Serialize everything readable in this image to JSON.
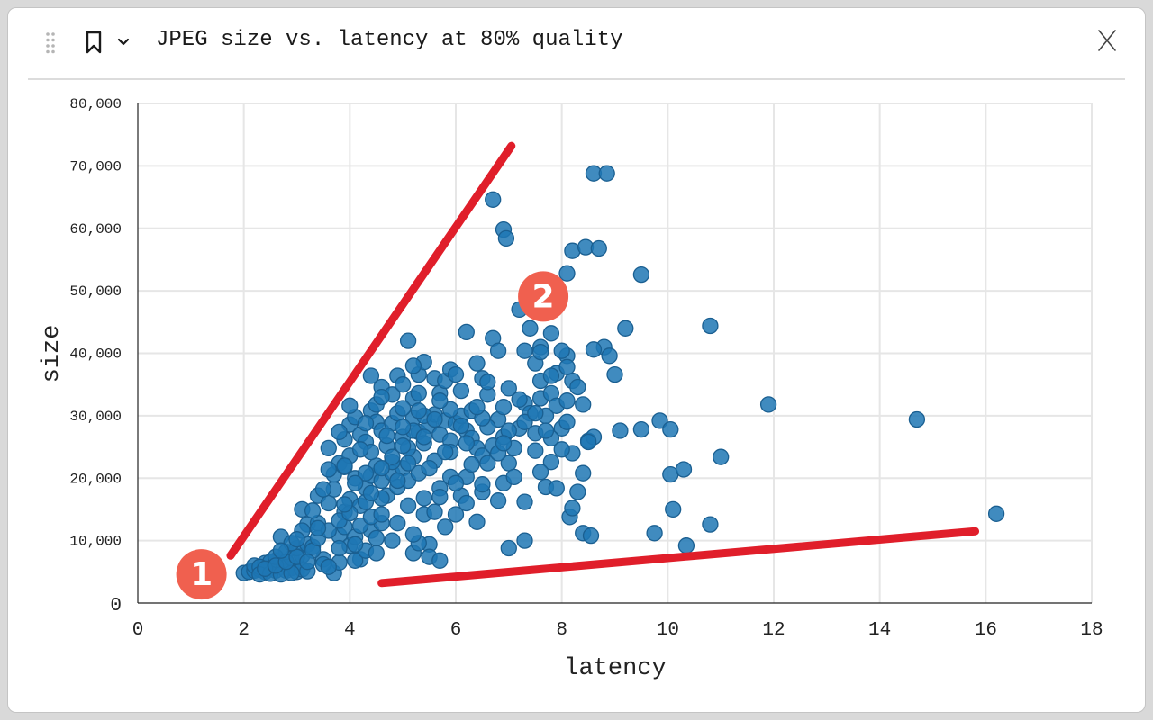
{
  "window": {
    "title": "JPEG size vs. latency at 80% quality",
    "icons": {
      "drag": "drag-handle-icon",
      "bookmark": "bookmark-icon",
      "menu": "chevron-down-icon",
      "close": "close-icon"
    }
  },
  "annotations": [
    {
      "label": "1",
      "color": "#f0604f"
    },
    {
      "label": "2",
      "color": "#f0604f"
    }
  ],
  "colors": {
    "points": "#1f77b4",
    "annotation_lines": "#e01e2a",
    "grid": "#e6e6e6"
  },
  "chart_data": {
    "type": "scatter",
    "title": "JPEG size vs. latency at 80% quality",
    "xlabel": "latency",
    "ylabel": "size",
    "xlim": [
      0,
      18
    ],
    "ylim": [
      0,
      80000
    ],
    "xticks": [
      "0",
      "2",
      "4",
      "6",
      "8",
      "10",
      "12",
      "14",
      "16",
      "18"
    ],
    "yticks": [
      "0",
      "10,000",
      "20,000",
      "30,000",
      "40,000",
      "50,000",
      "60,000",
      "70,000",
      "80,000"
    ],
    "grid": true,
    "trend_lines": [
      {
        "from": [
          1.75,
          7600
        ],
        "to": [
          7.05,
          73200
        ]
      },
      {
        "from": [
          4.6,
          3200
        ],
        "to": [
          15.8,
          11500
        ]
      }
    ],
    "annotation_positions": [
      [
        1.2,
        4600
      ],
      [
        7.65,
        49100
      ]
    ],
    "series": [
      {
        "points": [
          [
            2.0,
            4800
          ],
          [
            2.1,
            5000
          ],
          [
            2.2,
            5200
          ],
          [
            2.3,
            5400
          ],
          [
            2.4,
            5000
          ],
          [
            2.5,
            5600
          ],
          [
            2.6,
            5200
          ],
          [
            2.2,
            6000
          ],
          [
            2.4,
            6400
          ],
          [
            2.6,
            6800
          ],
          [
            2.8,
            5200
          ],
          [
            2.9,
            5600
          ],
          [
            3.0,
            5000
          ],
          [
            3.1,
            5400
          ],
          [
            2.7,
            6200
          ],
          [
            2.9,
            7200
          ],
          [
            3.1,
            7600
          ],
          [
            2.5,
            6600
          ],
          [
            2.3,
            5800
          ],
          [
            2.8,
            8200
          ],
          [
            3.0,
            8800
          ],
          [
            3.2,
            9400
          ],
          [
            2.6,
            7400
          ],
          [
            2.7,
            10600
          ],
          [
            3.3,
            9000
          ],
          [
            3.5,
            7000
          ],
          [
            3.7,
            4800
          ],
          [
            3.8,
            6500
          ],
          [
            3.2,
            12600
          ],
          [
            3.4,
            12800
          ],
          [
            3.1,
            15000
          ],
          [
            3.4,
            17200
          ],
          [
            3.6,
            16000
          ],
          [
            3.7,
            18200
          ],
          [
            3.5,
            6200
          ],
          [
            3.6,
            5800
          ],
          [
            3.8,
            10800
          ],
          [
            3.9,
            12200
          ],
          [
            4.0,
            9200
          ],
          [
            4.1,
            10600
          ],
          [
            4.2,
            7000
          ],
          [
            4.1,
            6800
          ],
          [
            4.3,
            8400
          ],
          [
            4.5,
            8000
          ],
          [
            4.4,
            11600
          ],
          [
            4.6,
            12800
          ],
          [
            3.9,
            14600
          ],
          [
            4.0,
            16600
          ],
          [
            4.2,
            15600
          ],
          [
            4.3,
            18400
          ],
          [
            4.4,
            20400
          ],
          [
            4.5,
            22000
          ],
          [
            4.6,
            19600
          ],
          [
            4.7,
            17200
          ],
          [
            4.8,
            20800
          ],
          [
            4.9,
            18600
          ],
          [
            5.0,
            21600
          ],
          [
            5.1,
            19600
          ],
          [
            5.2,
            23400
          ],
          [
            5.3,
            20800
          ],
          [
            3.7,
            20600
          ],
          [
            3.8,
            22400
          ],
          [
            3.9,
            21800
          ],
          [
            4.0,
            23600
          ],
          [
            4.1,
            20000
          ],
          [
            3.9,
            26200
          ],
          [
            4.0,
            28600
          ],
          [
            4.2,
            27000
          ],
          [
            4.3,
            25800
          ],
          [
            4.1,
            29800
          ],
          [
            4.4,
            30800
          ],
          [
            4.5,
            29000
          ],
          [
            4.6,
            27600
          ],
          [
            4.7,
            25200
          ],
          [
            4.8,
            28800
          ],
          [
            4.9,
            30400
          ],
          [
            5.0,
            26600
          ],
          [
            5.1,
            24800
          ],
          [
            5.2,
            29600
          ],
          [
            5.3,
            27400
          ],
          [
            5.4,
            25600
          ],
          [
            5.5,
            28400
          ],
          [
            5.6,
            30200
          ],
          [
            5.7,
            27000
          ],
          [
            5.8,
            29200
          ],
          [
            5.9,
            26000
          ],
          [
            6.0,
            28800
          ],
          [
            6.1,
            30000
          ],
          [
            6.2,
            27600
          ],
          [
            6.3,
            26400
          ],
          [
            6.4,
            24800
          ],
          [
            6.5,
            23600
          ],
          [
            4.5,
            31800
          ],
          [
            4.6,
            34600
          ],
          [
            4.8,
            33400
          ],
          [
            4.9,
            36400
          ],
          [
            5.0,
            35000
          ],
          [
            5.2,
            32800
          ],
          [
            5.3,
            36600
          ],
          [
            5.4,
            38600
          ],
          [
            5.6,
            36000
          ],
          [
            5.7,
            33600
          ],
          [
            5.8,
            35600
          ],
          [
            5.9,
            37400
          ],
          [
            6.0,
            36600
          ],
          [
            6.1,
            34000
          ],
          [
            6.2,
            43400
          ],
          [
            6.4,
            38400
          ],
          [
            6.5,
            36000
          ],
          [
            6.6,
            33400
          ],
          [
            6.7,
            42400
          ],
          [
            6.8,
            40400
          ],
          [
            5.1,
            42000
          ],
          [
            4.4,
            36400
          ],
          [
            5.4,
            14200
          ],
          [
            5.5,
            9400
          ],
          [
            5.6,
            14600
          ],
          [
            5.7,
            18400
          ],
          [
            5.8,
            12200
          ],
          [
            5.9,
            20200
          ],
          [
            6.0,
            14200
          ],
          [
            6.1,
            17200
          ],
          [
            6.2,
            20200
          ],
          [
            6.3,
            22200
          ],
          [
            6.4,
            13000
          ],
          [
            6.5,
            17800
          ],
          [
            6.6,
            22400
          ],
          [
            6.7,
            25200
          ],
          [
            5.5,
            7400
          ],
          [
            5.7,
            6800
          ],
          [
            5.2,
            8000
          ],
          [
            4.8,
            10000
          ],
          [
            4.5,
            10400
          ],
          [
            5.3,
            9600
          ],
          [
            6.8,
            29400
          ],
          [
            6.9,
            26600
          ],
          [
            7.0,
            22400
          ],
          [
            7.1,
            24800
          ],
          [
            7.2,
            28000
          ],
          [
            7.3,
            32000
          ],
          [
            7.4,
            30400
          ],
          [
            7.5,
            27200
          ],
          [
            7.6,
            32800
          ],
          [
            7.7,
            30000
          ],
          [
            7.8,
            33600
          ],
          [
            7.9,
            31600
          ],
          [
            8.0,
            28000
          ],
          [
            7.0,
            8800
          ],
          [
            7.3,
            10000
          ],
          [
            7.3,
            16200
          ],
          [
            7.7,
            18600
          ],
          [
            7.8,
            22600
          ],
          [
            7.9,
            18400
          ],
          [
            7.6,
            21000
          ],
          [
            6.9,
            19200
          ],
          [
            6.8,
            24000
          ],
          [
            7.0,
            27600
          ],
          [
            7.2,
            32600
          ],
          [
            7.3,
            40400
          ],
          [
            7.4,
            44000
          ],
          [
            7.5,
            38400
          ],
          [
            7.6,
            41000
          ],
          [
            7.8,
            43200
          ],
          [
            7.9,
            36800
          ],
          [
            8.1,
            39600
          ],
          [
            8.2,
            35600
          ],
          [
            8.3,
            34600
          ],
          [
            8.4,
            31800
          ],
          [
            8.5,
            26000
          ],
          [
            8.0,
            40400
          ],
          [
            8.1,
            37800
          ],
          [
            7.2,
            47000
          ],
          [
            7.4,
            47600
          ],
          [
            8.1,
            52800
          ],
          [
            8.2,
            56400
          ],
          [
            8.45,
            57000
          ],
          [
            8.7,
            56800
          ],
          [
            6.9,
            59800
          ],
          [
            6.95,
            58400
          ],
          [
            6.7,
            64600
          ],
          [
            8.6,
            68800
          ],
          [
            8.85,
            68800
          ],
          [
            9.5,
            52600
          ],
          [
            9.2,
            44000
          ],
          [
            9.0,
            36600
          ],
          [
            8.8,
            41000
          ],
          [
            8.9,
            39600
          ],
          [
            8.6,
            40600
          ],
          [
            8.2,
            24000
          ],
          [
            8.6,
            26600
          ],
          [
            8.5,
            25800
          ],
          [
            8.3,
            17800
          ],
          [
            8.15,
            13800
          ],
          [
            8.2,
            15200
          ],
          [
            8.4,
            11200
          ],
          [
            8.55,
            10800
          ],
          [
            9.1,
            27600
          ],
          [
            9.5,
            27800
          ],
          [
            9.85,
            29200
          ],
          [
            10.05,
            27800
          ],
          [
            10.05,
            20600
          ],
          [
            10.3,
            21400
          ],
          [
            10.1,
            15000
          ],
          [
            9.75,
            11200
          ],
          [
            10.35,
            9200
          ],
          [
            10.8,
            12600
          ],
          [
            11.0,
            23400
          ],
          [
            10.8,
            44400
          ],
          [
            11.9,
            31800
          ],
          [
            14.7,
            29400
          ],
          [
            16.2,
            14300
          ],
          [
            2.3,
            4600
          ],
          [
            2.5,
            4700
          ],
          [
            2.7,
            4600
          ],
          [
            2.9,
            4800
          ],
          [
            3.2,
            5100
          ],
          [
            2.4,
            5500
          ],
          [
            2.6,
            6000
          ],
          [
            2.8,
            6600
          ],
          [
            3.0,
            7400
          ],
          [
            3.3,
            8400
          ],
          [
            3.4,
            10400
          ],
          [
            3.6,
            11600
          ],
          [
            3.8,
            13200
          ],
          [
            4.0,
            14400
          ],
          [
            4.2,
            12400
          ],
          [
            4.3,
            16200
          ],
          [
            4.6,
            16800
          ],
          [
            4.8,
            22600
          ],
          [
            5.0,
            25200
          ],
          [
            5.2,
            27600
          ],
          [
            5.4,
            30000
          ],
          [
            5.0,
            31200
          ],
          [
            5.3,
            33600
          ],
          [
            5.6,
            29400
          ],
          [
            5.9,
            31000
          ],
          [
            6.1,
            28400
          ],
          [
            6.3,
            30800
          ],
          [
            6.6,
            28200
          ],
          [
            6.9,
            25600
          ],
          [
            7.1,
            20200
          ],
          [
            6.6,
            35400
          ],
          [
            7.0,
            34400
          ],
          [
            7.6,
            35600
          ],
          [
            7.8,
            26400
          ],
          [
            8.1,
            29000
          ],
          [
            8.4,
            20800
          ],
          [
            8.1,
            32400
          ],
          [
            7.5,
            24400
          ],
          [
            6.8,
            16400
          ],
          [
            6.5,
            19000
          ],
          [
            6.2,
            16000
          ],
          [
            5.6,
            22800
          ],
          [
            5.9,
            24200
          ],
          [
            4.9,
            19600
          ],
          [
            4.7,
            26800
          ],
          [
            4.4,
            24200
          ],
          [
            4.2,
            24600
          ],
          [
            3.9,
            22000
          ],
          [
            3.6,
            24800
          ],
          [
            3.5,
            18200
          ],
          [
            3.3,
            14800
          ],
          [
            3.1,
            11600
          ],
          [
            3.2,
            6600
          ],
          [
            2.9,
            9600
          ],
          [
            2.7,
            8400
          ],
          [
            3.0,
            10200
          ],
          [
            3.4,
            12000
          ],
          [
            3.8,
            8800
          ],
          [
            4.1,
            9400
          ],
          [
            4.4,
            13800
          ],
          [
            5.1,
            15600
          ],
          [
            5.4,
            16800
          ],
          [
            5.7,
            17000
          ],
          [
            6.0,
            19200
          ],
          [
            5.5,
            21600
          ],
          [
            5.8,
            24200
          ],
          [
            6.2,
            25600
          ],
          [
            6.5,
            29600
          ],
          [
            6.9,
            31400
          ],
          [
            7.3,
            29000
          ],
          [
            7.7,
            27600
          ],
          [
            8.0,
            24600
          ],
          [
            7.5,
            30400
          ],
          [
            7.8,
            36400
          ],
          [
            7.6,
            40200
          ],
          [
            6.4,
            31400
          ],
          [
            5.2,
            38000
          ],
          [
            4.6,
            33000
          ],
          [
            4.3,
            28800
          ],
          [
            4.0,
            31600
          ],
          [
            3.8,
            27400
          ],
          [
            4.3,
            20800
          ],
          [
            4.8,
            23400
          ],
          [
            5.0,
            28200
          ],
          [
            5.4,
            26600
          ],
          [
            5.1,
            22400
          ],
          [
            4.6,
            14200
          ],
          [
            4.9,
            12800
          ],
          [
            5.2,
            11000
          ],
          [
            4.4,
            17600
          ],
          [
            3.9,
            15800
          ],
          [
            3.6,
            21400
          ],
          [
            4.1,
            19200
          ],
          [
            4.6,
            21600
          ],
          [
            5.3,
            30800
          ],
          [
            5.7,
            32400
          ]
        ]
      }
    ]
  }
}
